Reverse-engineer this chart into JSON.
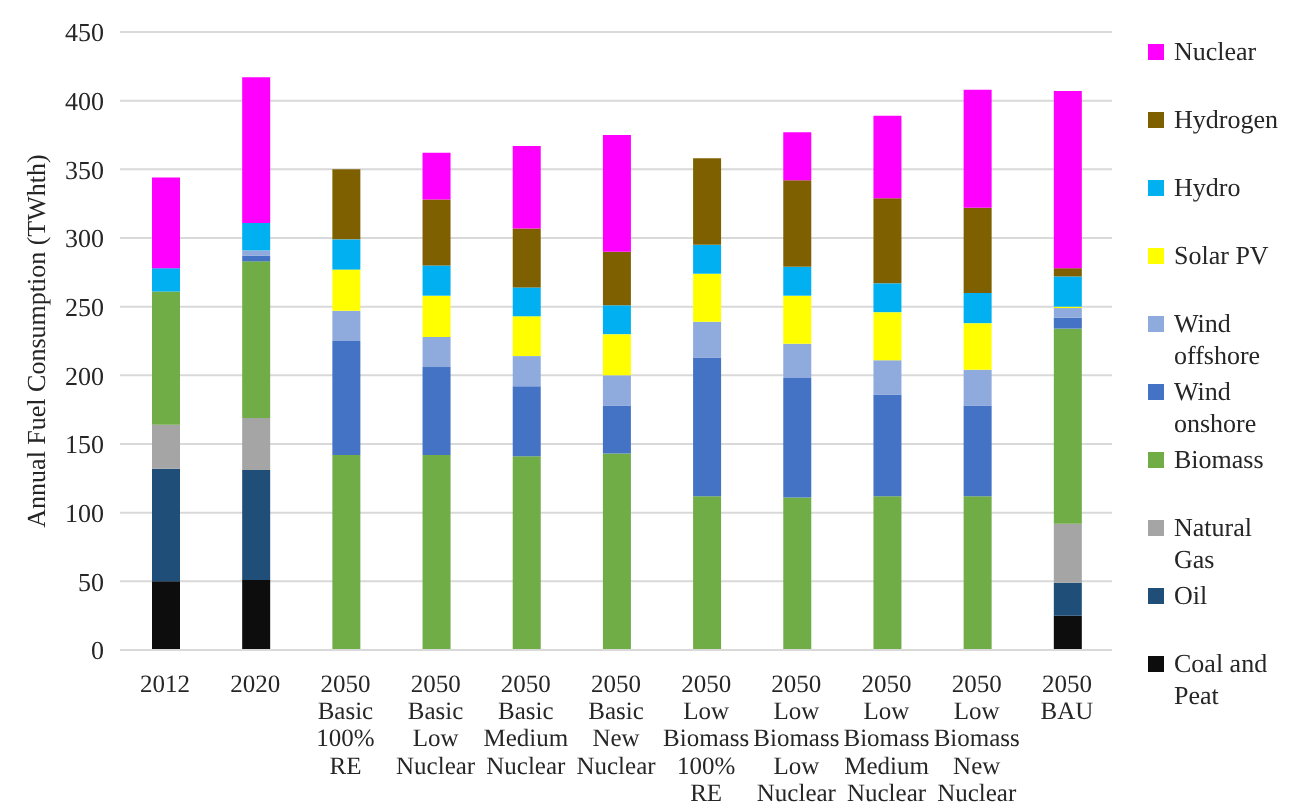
{
  "chart_data": {
    "type": "bar",
    "ylabel": "Annual Fuel Consumption (TWhth)",
    "categories": [
      "2012",
      "2020",
      "2050 Basic 100% RE",
      "2050 Basic Low Nuclear",
      "2050 Basic Medium Nuclear",
      "2050 Basic New Nuclear",
      "2050 Low Biomass 100% RE",
      "2050 Low Biomass Low Nuclear",
      "2050 Low Biomass Medium Nuclear",
      "2050 Low Biomass New Nuclear",
      "2050 BAU"
    ],
    "series": [
      {
        "name": "Coal and Peat",
        "color": "#0d0d0d",
        "values": [
          50,
          51,
          0,
          0,
          0,
          0,
          0,
          0,
          0,
          0,
          25
        ]
      },
      {
        "name": "Oil",
        "color": "#1f4e79",
        "values": [
          82,
          80,
          0,
          0,
          0,
          0,
          0,
          0,
          0,
          0,
          24
        ]
      },
      {
        "name": "Natural Gas",
        "color": "#a5a5a5",
        "values": [
          32,
          38,
          0,
          0,
          0,
          0,
          0,
          0,
          0,
          0,
          43
        ]
      },
      {
        "name": "Biomass",
        "color": "#70ad47",
        "values": [
          97,
          114,
          142,
          142,
          141,
          143,
          112,
          111,
          112,
          112,
          142
        ]
      },
      {
        "name": "Wind onshore",
        "color": "#4472c4",
        "values": [
          0,
          4,
          83,
          64,
          51,
          35,
          101,
          87,
          74,
          66,
          8
        ]
      },
      {
        "name": "Wind offshore",
        "color": "#8faadc",
        "values": [
          0,
          4,
          22,
          22,
          22,
          22,
          26,
          25,
          25,
          26,
          7
        ]
      },
      {
        "name": "Solar PV",
        "color": "#ffff00",
        "values": [
          0,
          0,
          30,
          30,
          29,
          30,
          35,
          35,
          35,
          34,
          1
        ]
      },
      {
        "name": "Hydro",
        "color": "#00b0f0",
        "values": [
          17,
          20,
          22,
          22,
          21,
          21,
          21,
          21,
          21,
          22,
          22
        ]
      },
      {
        "name": "Hydrogen",
        "color": "#7f6000",
        "values": [
          0,
          0,
          51,
          48,
          43,
          39,
          63,
          63,
          62,
          62,
          6
        ]
      },
      {
        "name": "Nuclear",
        "color": "#ff00ff",
        "values": [
          66,
          106,
          0,
          34,
          60,
          85,
          0,
          35,
          60,
          86,
          129
        ]
      }
    ],
    "stacked": true,
    "ylim": [
      0,
      450
    ],
    "yticks": [
      0,
      50,
      100,
      150,
      200,
      250,
      300,
      350,
      400,
      450
    ],
    "grid": "y",
    "legend": "right"
  }
}
